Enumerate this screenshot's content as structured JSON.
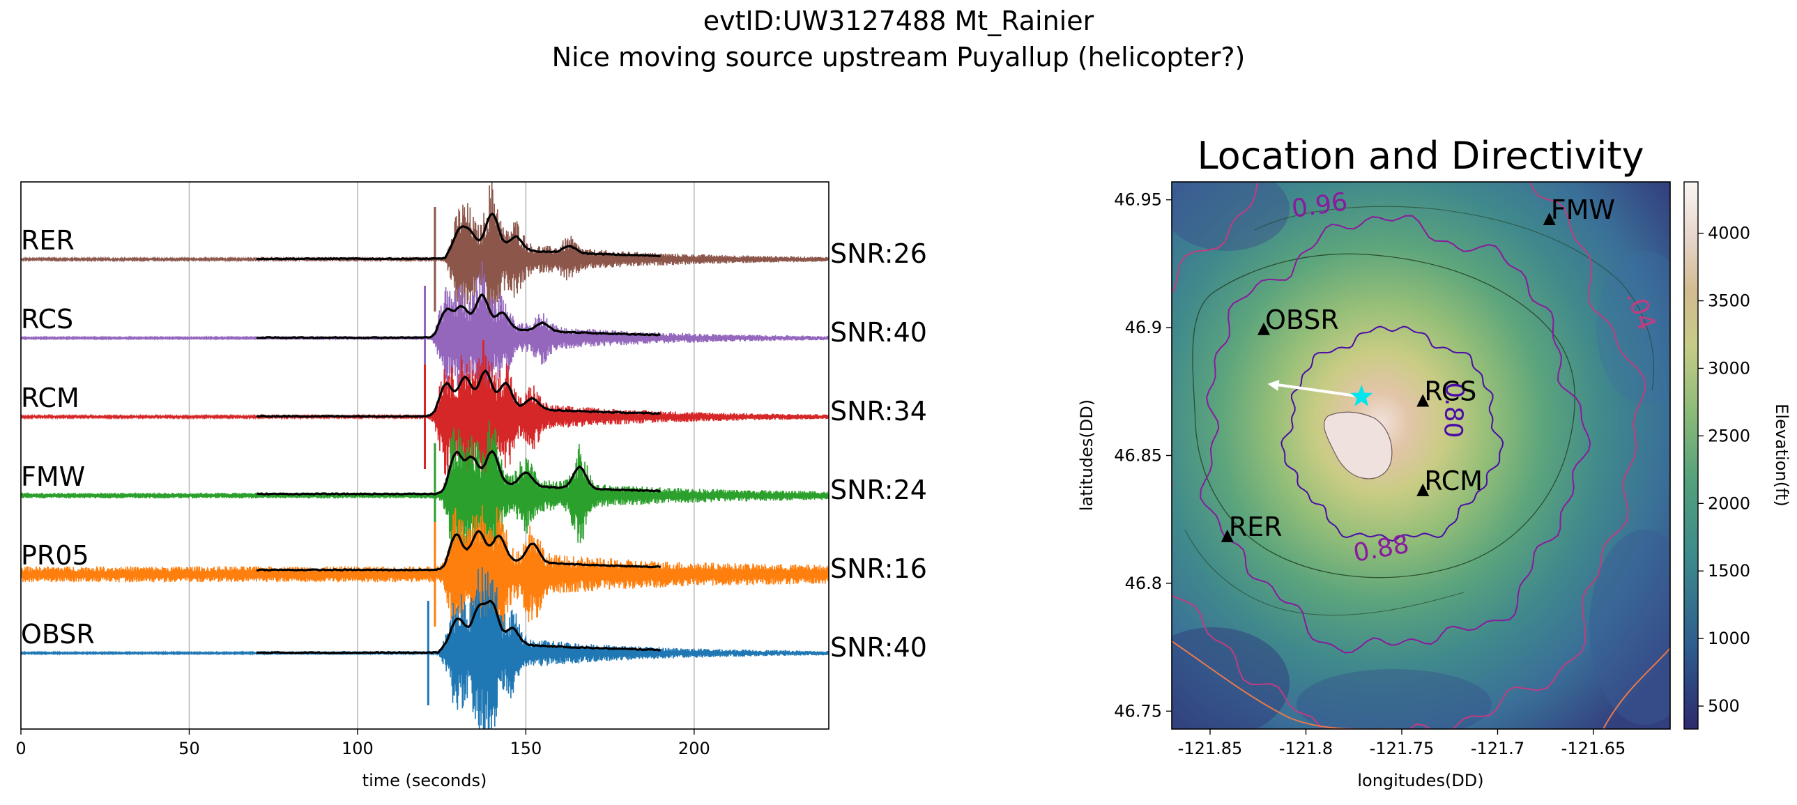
{
  "figure": {
    "title_line1": "evtID:UW3127488 Mt_Rainier",
    "title_line2": "Nice moving source upstream Puyallup (helicopter?)"
  },
  "chart_data": [
    {
      "type": "line",
      "xlabel": "time (seconds)",
      "ylabel": "",
      "xlim": [
        0,
        240
      ],
      "xticks": [
        0,
        50,
        100,
        150,
        200
      ],
      "grid": "vertical gridlines at x ticks",
      "envelope_window": [
        70,
        190
      ],
      "series": [
        {
          "name": "RER",
          "snr_label": "SNR:26",
          "color": "#8c564b",
          "pick_time": 123,
          "noise": 0.04,
          "spikes": [
            [
              130,
              0.45
            ],
            [
              133,
              0.55
            ],
            [
              140,
              1.3
            ],
            [
              147,
              0.5
            ],
            [
              163,
              0.25
            ]
          ]
        },
        {
          "name": "RCS",
          "snr_label": "SNR:40",
          "color": "#9467bd",
          "pick_time": 120,
          "noise": 0.03,
          "spikes": [
            [
              126,
              0.6
            ],
            [
              131,
              0.7
            ],
            [
              137,
              1.2
            ],
            [
              143,
              0.6
            ],
            [
              155,
              0.3
            ]
          ]
        },
        {
          "name": "RCM",
          "snr_label": "SNR:34",
          "color": "#d62728",
          "pick_time": 120,
          "noise": 0.04,
          "spikes": [
            [
              126,
              0.8
            ],
            [
              132,
              1.0
            ],
            [
              138,
              1.3
            ],
            [
              144,
              0.9
            ],
            [
              152,
              0.4
            ]
          ]
        },
        {
          "name": "FMW",
          "snr_label": "SNR:24",
          "color": "#2ca02c",
          "pick_time": 123,
          "noise": 0.12,
          "spikes": [
            [
              129,
              1.1
            ],
            [
              134,
              0.9
            ],
            [
              140,
              1.2
            ],
            [
              150,
              0.5
            ],
            [
              166,
              0.8
            ]
          ]
        },
        {
          "name": "PR05",
          "snr_label": "SNR:16",
          "color": "#ff7f0e",
          "pick_time": 123,
          "noise": 0.33,
          "spikes": [
            [
              129,
              0.9
            ],
            [
              136,
              1.0
            ],
            [
              142,
              0.9
            ],
            [
              152,
              0.7
            ]
          ]
        },
        {
          "name": "OBSR",
          "snr_label": "SNR:40",
          "color": "#1f77b4",
          "pick_time": 121,
          "noise": 0.03,
          "spikes": [
            [
              130,
              0.8
            ],
            [
              136,
              1.2
            ],
            [
              140,
              1.4
            ],
            [
              146,
              0.6
            ]
          ]
        }
      ]
    },
    {
      "type": "heatmap",
      "title": "Location and Directivity",
      "xlabel": "longitudes(DD)",
      "ylabel": "latitudes(DD)",
      "xlim": [
        -121.87,
        -121.61
      ],
      "ylim": [
        46.743,
        46.957
      ],
      "xticks": [
        -121.85,
        -121.8,
        -121.75,
        -121.7,
        -121.65
      ],
      "xtick_labels": [
        "-121.85",
        "-121.8",
        "-121.75",
        "-121.7",
        "-121.65"
      ],
      "yticks": [
        46.75,
        46.8,
        46.85,
        46.9,
        46.95
      ],
      "ytick_labels": [
        "46.75",
        "46.8",
        "46.85",
        "46.9",
        "46.95"
      ],
      "colorbar": {
        "label": "Elevation(ft)",
        "range": [
          330,
          4380
        ],
        "ticks": [
          500,
          1000,
          1500,
          2000,
          2500,
          3000,
          3500,
          4000
        ]
      },
      "stations": [
        {
          "name": "FMW",
          "lon": -121.673,
          "lat": 46.942
        },
        {
          "name": "OBSR",
          "lon": -121.822,
          "lat": 46.899
        },
        {
          "name": "RCS",
          "lon": -121.739,
          "lat": 46.871
        },
        {
          "name": "RCM",
          "lon": -121.739,
          "lat": 46.836
        },
        {
          "name": "RER",
          "lon": -121.841,
          "lat": 46.818
        }
      ],
      "source": {
        "lon": -121.771,
        "lat": 46.873,
        "color": "#00e5ee"
      },
      "directivity_arrow": {
        "from": [
          -121.771,
          46.873
        ],
        "to": [
          -121.82,
          46.878
        ],
        "color": "#ffffff"
      },
      "contour_labels": [
        "0.96",
        "0.80",
        "0.88",
        ".04"
      ],
      "contours": [
        {
          "level": 0.8,
          "color": "#4b0ca8",
          "radius_lon": 0.055,
          "radius_lat": 0.041
        },
        {
          "level": 0.88,
          "color": "#8a1a9e",
          "radius_lon": 0.097,
          "radius_lat": 0.083
        },
        {
          "level": 0.96,
          "color": "#c03d80",
          "radius_lon": 0.125,
          "radius_lat": 0.12
        }
      ]
    }
  ]
}
